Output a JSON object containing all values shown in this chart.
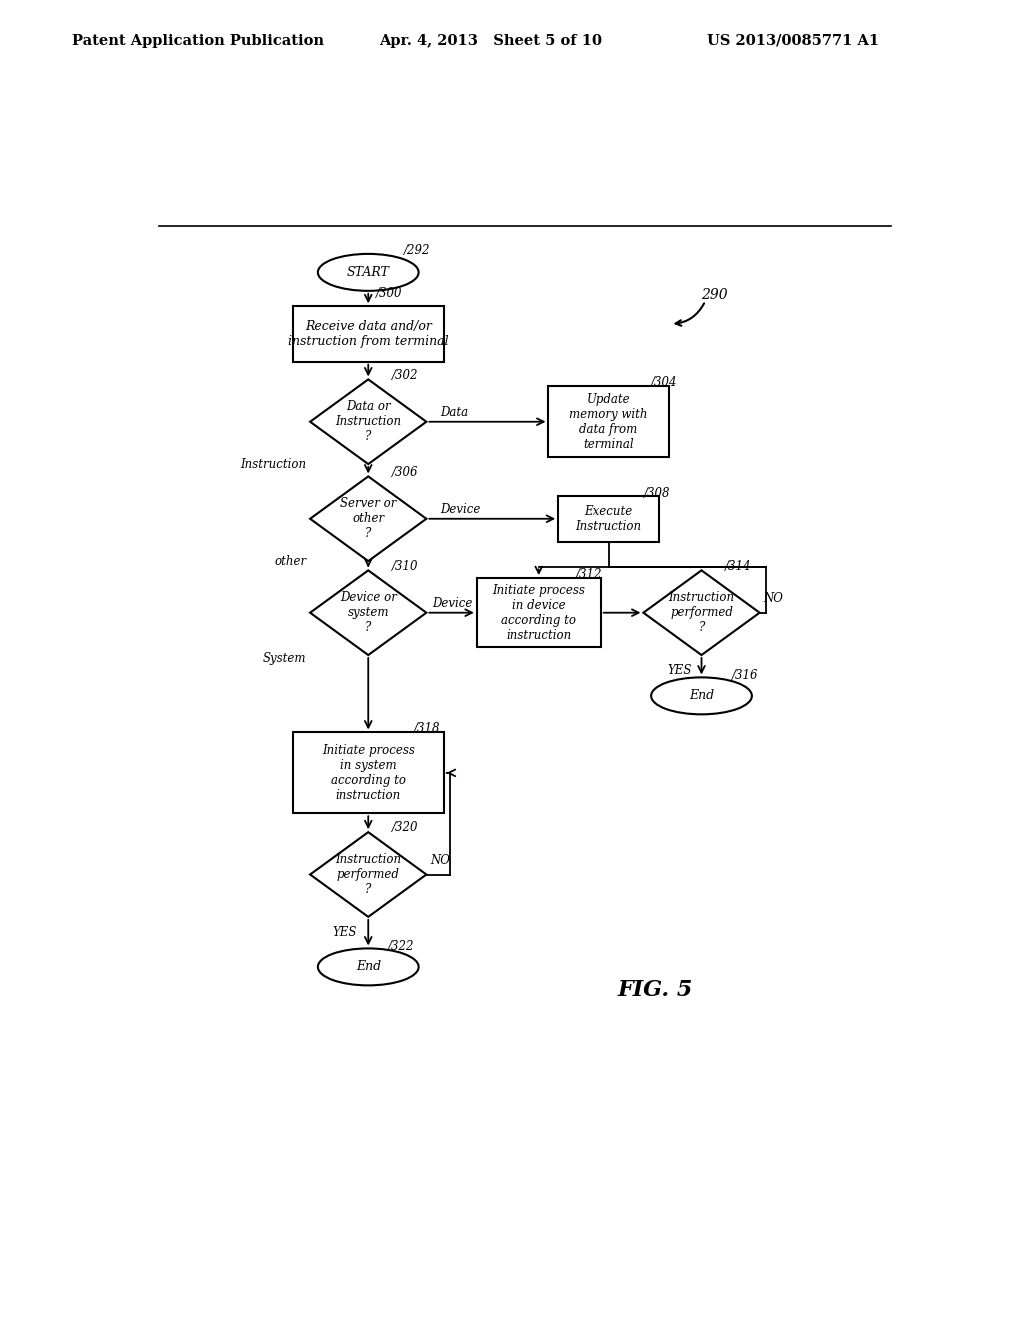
{
  "title_left": "Patent Application Publication",
  "title_mid": "Apr. 4, 2013   Sheet 5 of 10",
  "title_right": "US 2013/0085771 A1",
  "fig_label": "FIG. 5",
  "background": "#ffffff"
}
